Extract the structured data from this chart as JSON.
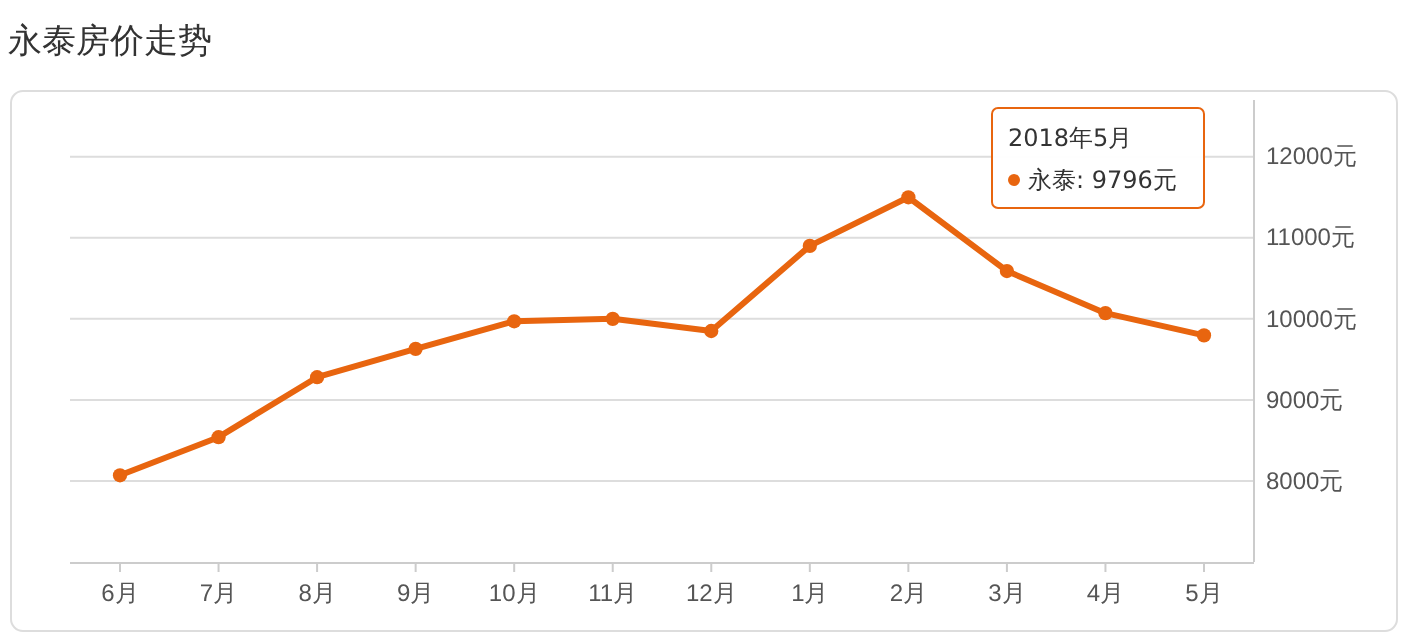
{
  "chart_data": {
    "type": "line",
    "title": "永泰房价走势",
    "categories": [
      "6月",
      "7月",
      "8月",
      "9月",
      "10月",
      "11月",
      "12月",
      "1月",
      "2月",
      "3月",
      "4月",
      "5月"
    ],
    "series": [
      {
        "color": "#e8650f",
        "values": [
          8070,
          8540,
          9280,
          9630,
          9970,
          10000,
          9850,
          10900,
          11500,
          10590,
          10070,
          9796
        ]
      }
    ],
    "ylim": [
      7000,
      12700
    ],
    "yticks": [
      {
        "value": 8000,
        "label": "8000元"
      },
      {
        "value": 9000,
        "label": "9000元"
      },
      {
        "value": 10000,
        "label": "10000元"
      },
      {
        "value": 11000,
        "label": "11000元"
      },
      {
        "value": 12000,
        "label": "12000元"
      }
    ],
    "grid": "y",
    "marker": "circle",
    "line_style": "solid",
    "annotations": [
      "2018年5月",
      "永泰: 9796元"
    ]
  }
}
